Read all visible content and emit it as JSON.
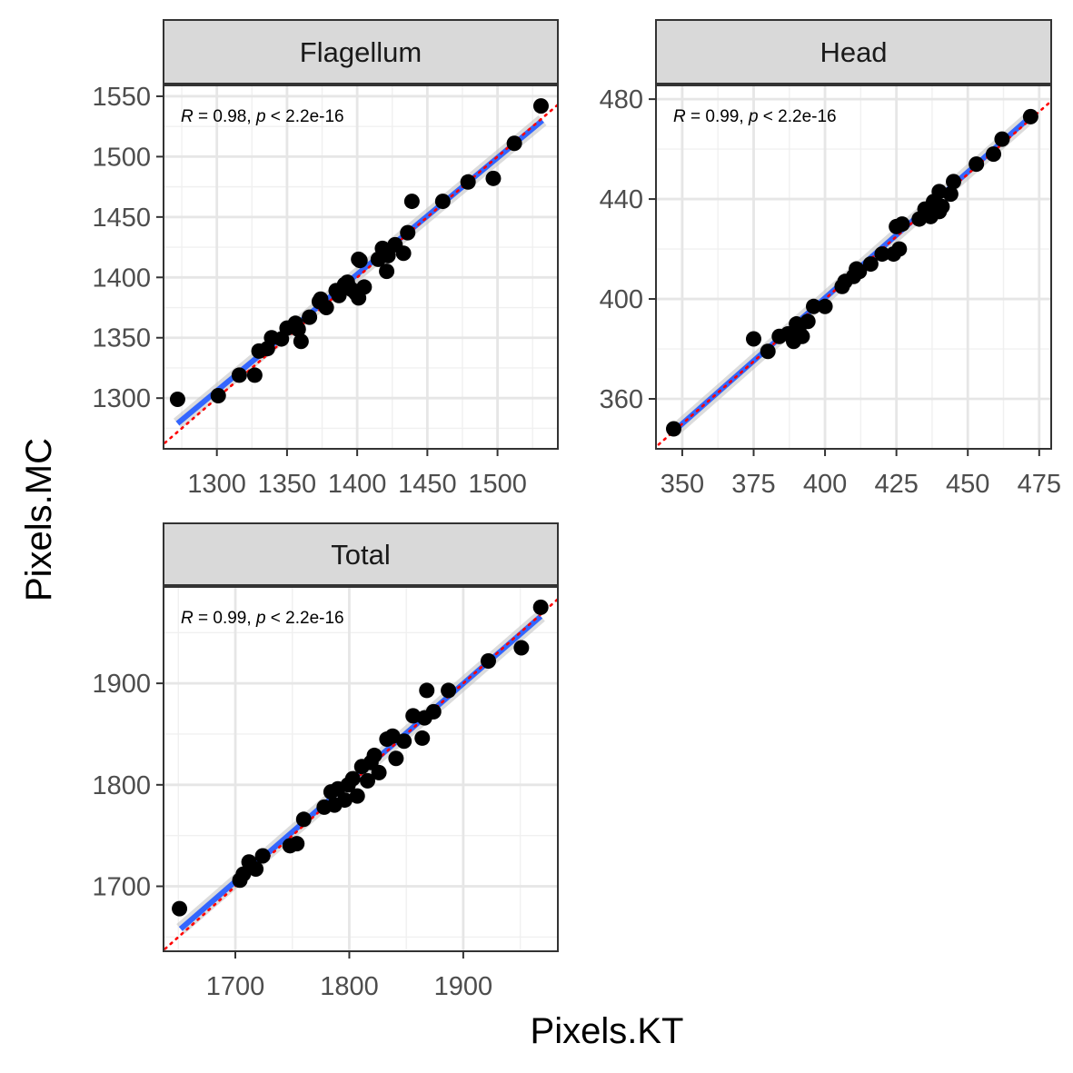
{
  "figure": {
    "xlabel": "Pixels.KT",
    "ylabel": "Pixels.MC"
  },
  "chart_data": [
    {
      "type": "scatter",
      "facet": "Flagellum",
      "annotation": {
        "r_label": "R",
        "r_text": " = 0.98, ",
        "p_label": "p",
        "p_text": " < 2.2e-16"
      },
      "xlim": [
        1262,
        1543
      ],
      "ylim": [
        1258,
        1559
      ],
      "x_ticks": [
        1300,
        1350,
        1400,
        1450,
        1500
      ],
      "y_ticks": [
        1300,
        1350,
        1400,
        1450,
        1500,
        1550
      ],
      "regression_line": {
        "x": [
          1272,
          1532
        ],
        "y": [
          1279,
          1530
        ],
        "color": "#3366FF"
      },
      "identity_line": {
        "color": "#FF0000",
        "style": "dotted"
      },
      "points": {
        "x": [
          1272,
          1301,
          1316,
          1327,
          1330,
          1336,
          1339,
          1346,
          1350,
          1356,
          1360,
          1358,
          1366,
          1373,
          1374,
          1378,
          1385,
          1387,
          1391,
          1393,
          1396,
          1399,
          1401,
          1401,
          1402,
          1405,
          1415,
          1418,
          1421,
          1422,
          1427,
          1433,
          1436,
          1439,
          1461,
          1479,
          1497,
          1512,
          1531
        ],
        "y": [
          1299,
          1302,
          1319,
          1319,
          1339,
          1341,
          1350,
          1349,
          1358,
          1362,
          1347,
          1357,
          1367,
          1380,
          1382,
          1375,
          1389,
          1385,
          1394,
          1396,
          1390,
          1387,
          1383,
          1415,
          1414,
          1392,
          1415,
          1424,
          1405,
          1418,
          1427,
          1420,
          1437,
          1463,
          1463,
          1479,
          1482,
          1511,
          1542
        ]
      }
    },
    {
      "type": "scatter",
      "facet": "Head",
      "annotation": {
        "r_label": "R",
        "r_text": " = 0.99, ",
        "p_label": "p",
        "p_text": " < 2.2e-16"
      },
      "xlim": [
        340.8,
        479.2
      ],
      "ylim": [
        340,
        485.5
      ],
      "x_ticks": [
        350,
        375,
        400,
        425,
        450,
        475
      ],
      "y_ticks": [
        360,
        400,
        440,
        480
      ],
      "regression_line": {
        "x": [
          347,
          473
        ],
        "y": [
          347,
          474
        ],
        "color": "#3366FF"
      },
      "identity_line": {
        "color": "#FF0000",
        "style": "dotted"
      },
      "points": {
        "x": [
          347,
          375,
          380,
          384,
          387,
          389,
          390,
          391,
          392,
          394,
          396,
          400,
          406,
          407,
          410,
          411,
          412,
          416,
          420,
          424,
          425,
          426,
          427,
          433,
          435,
          437,
          438,
          440,
          440,
          441,
          444,
          445,
          453,
          459,
          462,
          472
        ],
        "y": [
          348,
          384,
          379,
          385,
          386,
          383,
          390,
          389,
          385,
          391,
          397,
          397,
          405,
          407,
          409,
          412,
          411,
          414,
          418,
          418,
          429,
          420,
          430,
          432,
          436,
          433,
          439,
          443,
          435,
          437,
          442,
          447,
          454,
          458,
          464,
          473
        ]
      }
    },
    {
      "type": "scatter",
      "facet": "Total",
      "annotation": {
        "r_label": "R",
        "r_text": " = 0.99, ",
        "p_label": "p",
        "p_text": " < 2.2e-16"
      },
      "xlim": [
        1637,
        1983
      ],
      "ylim": [
        1636,
        1995
      ],
      "x_ticks": [
        1700,
        1800,
        1900
      ],
      "y_ticks": [
        1700,
        1800,
        1900
      ],
      "regression_line": {
        "x": [
          1652,
          1968
        ],
        "y": [
          1658,
          1966
        ],
        "color": "#3366FF"
      },
      "identity_line": {
        "color": "#FF0000",
        "style": "dotted"
      },
      "points": {
        "x": [
          1651,
          1704,
          1707,
          1712,
          1718,
          1724,
          1748,
          1754,
          1760,
          1778,
          1784,
          1787,
          1790,
          1796,
          1799,
          1803,
          1807,
          1811,
          1816,
          1819,
          1822,
          1826,
          1833,
          1838,
          1841,
          1848,
          1856,
          1864,
          1866,
          1868,
          1874,
          1887,
          1922,
          1951,
          1968
        ],
        "y": [
          1678,
          1706,
          1712,
          1724,
          1717,
          1730,
          1740,
          1742,
          1766,
          1778,
          1793,
          1780,
          1796,
          1785,
          1800,
          1806,
          1789,
          1818,
          1804,
          1822,
          1829,
          1812,
          1845,
          1848,
          1826,
          1843,
          1868,
          1846,
          1866,
          1893,
          1872,
          1893,
          1922,
          1935,
          1975
        ]
      }
    }
  ]
}
